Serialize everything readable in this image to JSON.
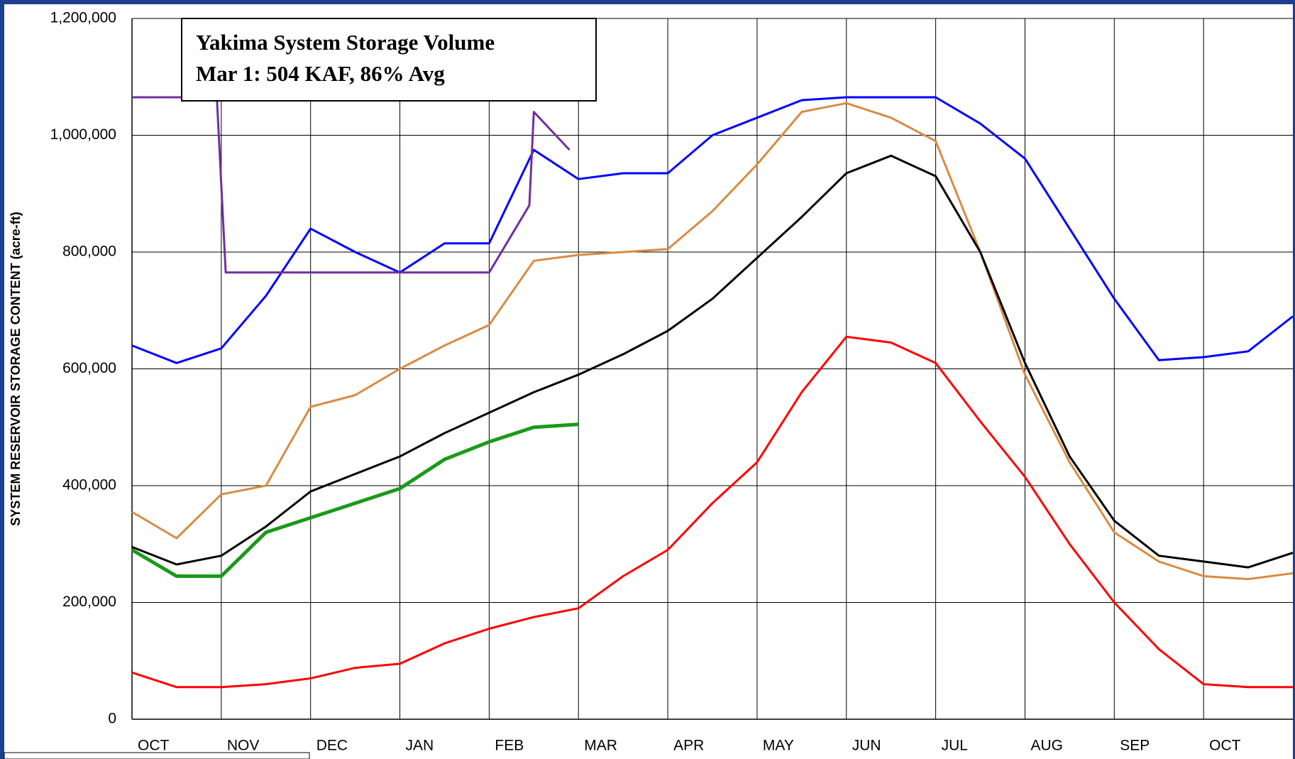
{
  "chart_data": {
    "type": "line",
    "annotation": [
      "Yakima System Storage Volume",
      "Mar 1: 504 KAF, 86% Avg"
    ],
    "y_label": "SYSTEM RESERVOIR STORAGE CONTENT (acre-ft)",
    "x": [
      0,
      0.5,
      1,
      1.5,
      2,
      2.5,
      3,
      3.5,
      4,
      4.5,
      5,
      5.5,
      6,
      6.5,
      7,
      7.5,
      8,
      8.5,
      9,
      9.5,
      10,
      10.5,
      11,
      11.5,
      12,
      12.5,
      13
    ],
    "series": [
      {
        "color": "#ff0000",
        "values": [
          80000,
          55000,
          55000,
          60000,
          70000,
          88000,
          95000,
          130000,
          155000,
          175000,
          190000,
          245000,
          290000,
          370000,
          440000,
          560000,
          655000,
          645000,
          610000,
          510000,
          415000,
          300000,
          200000,
          120000,
          60000,
          55000,
          55000
        ]
      },
      {
        "color": "#d98b43",
        "values": [
          355000,
          310000,
          385000,
          400000,
          535000,
          555000,
          600000,
          640000,
          675000,
          785000,
          795000,
          800000,
          805000,
          870000,
          950000,
          1040000,
          1055000,
          1030000,
          990000,
          800000,
          590000,
          440000,
          320000,
          270000,
          245000,
          240000,
          250000
        ]
      },
      {
        "color": "#000000",
        "values": [
          295000,
          265000,
          280000,
          330000,
          390000,
          420000,
          450000,
          490000,
          525000,
          560000,
          590000,
          625000,
          665000,
          720000,
          790000,
          860000,
          935000,
          965000,
          930000,
          800000,
          610000,
          450000,
          340000,
          280000,
          270000,
          260000,
          285000
        ]
      },
      {
        "color": "#0000ff",
        "values": [
          640000,
          610000,
          635000,
          725000,
          840000,
          800000,
          765000,
          815000,
          815000,
          975000,
          925000,
          935000,
          935000,
          1000000,
          1030000,
          1060000,
          1065000,
          1065000,
          1065000,
          1020000,
          960000,
          840000,
          720000,
          615000,
          620000,
          630000,
          690000
        ]
      },
      {
        "color": "#1a9a1a",
        "values": [
          290000,
          245000,
          245000,
          320000,
          345000,
          370000,
          395000,
          445000,
          475000,
          500000,
          505000,
          null,
          null,
          null,
          null,
          null,
          null,
          null,
          null,
          null,
          null,
          null,
          null,
          null,
          null,
          null,
          null
        ]
      },
      {
        "color": "#7030a0",
        "x": [
          0,
          0.95,
          1.05,
          4.0,
          4.45,
          4.5,
          4.9
        ],
        "values": [
          1065000,
          1065000,
          765000,
          765000,
          880000,
          1040000,
          975000
        ]
      }
    ],
    "xlim": [
      0,
      13
    ],
    "xticks": [
      {
        "value": 0,
        "label": "OCT"
      },
      {
        "value": 1,
        "label": "NOV"
      },
      {
        "value": 2,
        "label": "DEC"
      },
      {
        "value": 3,
        "label": "JAN"
      },
      {
        "value": 4,
        "label": "FEB"
      },
      {
        "value": 5,
        "label": "MAR"
      },
      {
        "value": 6,
        "label": "APR"
      },
      {
        "value": 7,
        "label": "MAY"
      },
      {
        "value": 8,
        "label": "JUN"
      },
      {
        "value": 9,
        "label": "JUL"
      },
      {
        "value": 10,
        "label": "AUG"
      },
      {
        "value": 11,
        "label": "SEP"
      },
      {
        "value": 12,
        "label": "OCT"
      }
    ],
    "ylim": [
      0,
      1200000
    ],
    "yticks": [
      0,
      {
        "value": 200000,
        "label": "200,000"
      },
      {
        "value": 400000,
        "label": "400,000"
      },
      {
        "value": 600000,
        "label": "600,000"
      },
      {
        "value": 800000,
        "label": "800,000"
      },
      {
        "value": 1000000,
        "label": "1,000,000"
      },
      {
        "value": 1200000,
        "label": "1,200,000"
      }
    ],
    "grid": true
  }
}
